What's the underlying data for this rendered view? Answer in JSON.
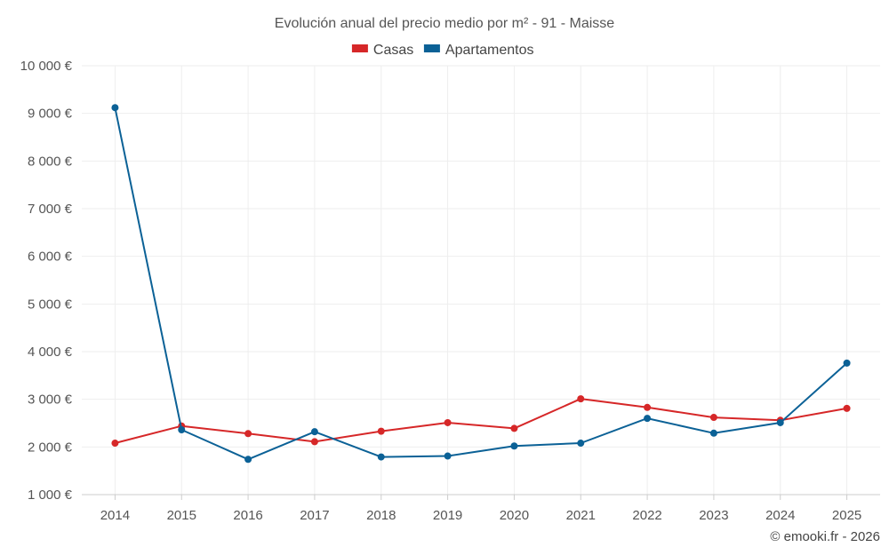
{
  "chart_data": {
    "type": "line",
    "title": "Evolución anual del precio medio por m² - 91 - Maisse",
    "xlabel": "",
    "ylabel": "",
    "categories": [
      "2014",
      "2015",
      "2016",
      "2017",
      "2018",
      "2019",
      "2020",
      "2021",
      "2022",
      "2023",
      "2024",
      "2025"
    ],
    "ylim": [
      1000,
      10000
    ],
    "y_ticks": [
      1000,
      2000,
      3000,
      4000,
      5000,
      6000,
      7000,
      8000,
      9000,
      10000
    ],
    "y_tick_labels": [
      "1 000 €",
      "2 000 €",
      "3 000 €",
      "4 000 €",
      "5 000 €",
      "6 000 €",
      "7 000 €",
      "8 000 €",
      "9 000 €",
      "10 000 €"
    ],
    "grid": true,
    "legend_position": "top-center",
    "series": [
      {
        "name": "Casas",
        "color": "#d62728",
        "values": [
          2080,
          2440,
          2280,
          2110,
          2330,
          2510,
          2390,
          3010,
          2830,
          2620,
          2560,
          2810
        ]
      },
      {
        "name": "Apartamentos",
        "color": "#0b6196",
        "values": [
          9120,
          2360,
          1740,
          2320,
          1790,
          1810,
          2020,
          2080,
          2600,
          2290,
          2510,
          3760
        ]
      }
    ],
    "credit": "© emooki.fr - 2026"
  }
}
